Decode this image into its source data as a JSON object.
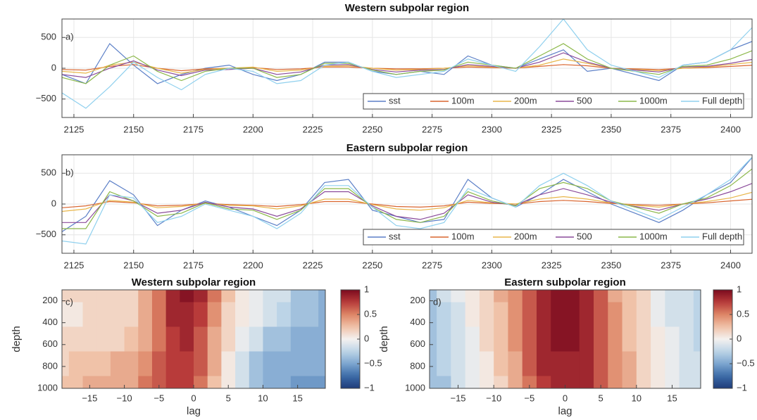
{
  "chart_data": [
    {
      "type": "line",
      "title": "Western subpolar region",
      "panel_label": "a)",
      "x": [
        2120,
        2130,
        2140,
        2150,
        2160,
        2170,
        2180,
        2190,
        2200,
        2210,
        2220,
        2230,
        2240,
        2250,
        2260,
        2270,
        2280,
        2290,
        2300,
        2310,
        2320,
        2330,
        2340,
        2350,
        2360,
        2370,
        2380,
        2390,
        2400,
        2410
      ],
      "xlim": [
        2120,
        2409
      ],
      "xticks": [
        2125,
        2150,
        2175,
        2200,
        2225,
        2250,
        2275,
        2300,
        2325,
        2350,
        2375,
        2400
      ],
      "ylim": [
        -800,
        800
      ],
      "yticks": [
        {
          "value": -500,
          "label": "−500"
        },
        0,
        500
      ],
      "grid": true,
      "legend": "lower right",
      "series": [
        {
          "name": "sst",
          "color": "#5b7fc7",
          "values": [
            -100,
            -250,
            400,
            50,
            -250,
            -100,
            0,
            50,
            -100,
            -200,
            -100,
            100,
            100,
            -50,
            -100,
            -50,
            -100,
            200,
            50,
            0,
            150,
            300,
            -50,
            0,
            -100,
            -200,
            50,
            100,
            300,
            450
          ]
        },
        {
          "name": "100m",
          "color": "#d9652f",
          "values": [
            -20,
            -30,
            30,
            60,
            0,
            -40,
            -10,
            0,
            10,
            -20,
            -10,
            20,
            20,
            0,
            -10,
            -10,
            0,
            20,
            10,
            0,
            30,
            60,
            40,
            0,
            -10,
            -20,
            0,
            10,
            30,
            50
          ]
        },
        {
          "name": "200m",
          "color": "#e8b64a",
          "values": [
            -50,
            -80,
            50,
            100,
            0,
            -80,
            -20,
            0,
            20,
            -50,
            -30,
            30,
            40,
            0,
            -30,
            -20,
            0,
            40,
            20,
            0,
            50,
            150,
            80,
            0,
            -20,
            -40,
            0,
            20,
            60,
            100
          ]
        },
        {
          "name": "500",
          "color": "#8a4a9a",
          "values": [
            -100,
            -150,
            0,
            120,
            -30,
            -120,
            -30,
            -20,
            0,
            -100,
            -60,
            50,
            60,
            -20,
            -60,
            -30,
            -20,
            60,
            30,
            0,
            100,
            250,
            100,
            0,
            -30,
            -60,
            20,
            30,
            80,
            150
          ]
        },
        {
          "name": "1000m",
          "color": "#8cb84a",
          "values": [
            -150,
            -250,
            50,
            200,
            -50,
            -200,
            -50,
            0,
            0,
            -150,
            -100,
            80,
            80,
            -30,
            -100,
            -50,
            -30,
            100,
            50,
            0,
            200,
            400,
            150,
            0,
            -50,
            -100,
            30,
            50,
            150,
            300
          ]
        },
        {
          "name": "Full depth",
          "color": "#8fd0ee",
          "values": [
            -400,
            -650,
            -300,
            100,
            -150,
            -350,
            -100,
            0,
            -50,
            -250,
            -200,
            50,
            100,
            -50,
            -150,
            -100,
            -50,
            150,
            50,
            -50,
            350,
            800,
            300,
            50,
            -50,
            -150,
            50,
            100,
            300,
            700
          ]
        }
      ]
    },
    {
      "type": "line",
      "title": "Eastern subpolar region",
      "panel_label": "b)",
      "x": [
        2120,
        2130,
        2140,
        2150,
        2160,
        2170,
        2180,
        2190,
        2200,
        2210,
        2220,
        2230,
        2240,
        2250,
        2260,
        2270,
        2280,
        2290,
        2300,
        2310,
        2320,
        2330,
        2340,
        2350,
        2360,
        2370,
        2380,
        2390,
        2400,
        2410
      ],
      "xlim": [
        2120,
        2409
      ],
      "xticks": [
        2125,
        2150,
        2175,
        2200,
        2225,
        2250,
        2275,
        2300,
        2325,
        2350,
        2375,
        2400
      ],
      "ylim": [
        -800,
        800
      ],
      "yticks": [
        {
          "value": -500,
          "label": "−500"
        },
        0,
        500
      ],
      "grid": true,
      "legend": "lower right",
      "series": [
        {
          "name": "sst",
          "color": "#5b7fc7",
          "values": [
            -450,
            -200,
            380,
            150,
            -350,
            -100,
            50,
            -50,
            -200,
            -350,
            -100,
            350,
            400,
            -100,
            -200,
            -300,
            -250,
            400,
            100,
            -50,
            150,
            400,
            200,
            0,
            -150,
            -300,
            -100,
            150,
            350,
            800
          ]
        },
        {
          "name": "100m",
          "color": "#d9652f",
          "values": [
            -60,
            -30,
            40,
            20,
            -30,
            -20,
            10,
            -10,
            -20,
            -40,
            -10,
            40,
            40,
            0,
            -40,
            -50,
            -30,
            30,
            10,
            0,
            40,
            60,
            40,
            10,
            -10,
            -20,
            0,
            20,
            50,
            80
          ]
        },
        {
          "name": "200m",
          "color": "#e8b64a",
          "values": [
            -120,
            -80,
            60,
            30,
            -60,
            -40,
            10,
            -20,
            -30,
            -80,
            -30,
            80,
            80,
            -10,
            -80,
            -100,
            -60,
            60,
            20,
            0,
            80,
            120,
            80,
            20,
            -20,
            -50,
            0,
            40,
            100,
            200
          ]
        },
        {
          "name": "500",
          "color": "#8a4a9a",
          "values": [
            -300,
            -300,
            150,
            50,
            -150,
            -100,
            30,
            -50,
            -80,
            -200,
            -80,
            200,
            200,
            -30,
            -200,
            -250,
            -150,
            150,
            30,
            -20,
            150,
            250,
            150,
            30,
            -40,
            -100,
            0,
            80,
            200,
            350
          ]
        },
        {
          "name": "1000m",
          "color": "#8cb84a",
          "values": [
            -400,
            -400,
            200,
            50,
            -200,
            -150,
            20,
            -80,
            -100,
            -250,
            -100,
            250,
            250,
            -50,
            -250,
            -300,
            -200,
            200,
            50,
            -30,
            250,
            350,
            250,
            50,
            -50,
            -150,
            0,
            100,
            300,
            600
          ]
        },
        {
          "name": "Full depth",
          "color": "#8fd0ee",
          "values": [
            -600,
            -650,
            150,
            100,
            -300,
            -200,
            0,
            -100,
            -200,
            -400,
            -150,
            300,
            300,
            -50,
            -350,
            -400,
            -300,
            250,
            100,
            -50,
            300,
            500,
            300,
            50,
            -100,
            -250,
            -50,
            150,
            400,
            800
          ]
        }
      ]
    },
    {
      "type": "contour",
      "title": "Western subpolar region",
      "panel_label": "c)",
      "xlabel": "lag",
      "ylabel": "depth",
      "x": [
        -19,
        -17,
        -15,
        -13,
        -11,
        -9,
        -7,
        -5,
        -3,
        -1,
        1,
        3,
        5,
        7,
        9,
        11,
        13,
        15,
        17,
        19
      ],
      "y": [
        100,
        325,
        550,
        775,
        1000
      ],
      "z": [
        [
          0.1,
          0.1,
          0.1,
          0.1,
          0.12,
          0.15,
          0.3,
          0.55,
          0.85,
          0.95,
          0.8,
          0.5,
          0.25,
          0.05,
          -0.05,
          -0.15,
          -0.2,
          -0.3,
          -0.35,
          -0.4
        ],
        [
          0.08,
          0.08,
          0.1,
          0.12,
          0.12,
          0.15,
          0.3,
          0.55,
          0.8,
          0.9,
          0.75,
          0.45,
          0.2,
          0,
          -0.1,
          -0.2,
          -0.25,
          -0.3,
          -0.35,
          -0.4
        ],
        [
          0.15,
          0.18,
          0.2,
          0.2,
          0.2,
          0.25,
          0.35,
          0.55,
          0.75,
          0.8,
          0.65,
          0.35,
          0.1,
          -0.1,
          -0.2,
          -0.3,
          -0.35,
          -0.4,
          -0.45,
          -0.45
        ],
        [
          0.2,
          0.22,
          0.25,
          0.25,
          0.3,
          0.35,
          0.45,
          0.6,
          0.75,
          0.75,
          0.6,
          0.3,
          0.05,
          -0.15,
          -0.3,
          -0.4,
          -0.45,
          -0.5,
          -0.5,
          -0.5
        ],
        [
          0.25,
          0.25,
          0.3,
          0.3,
          0.35,
          0.4,
          0.5,
          0.6,
          0.72,
          0.72,
          0.55,
          0.25,
          0,
          -0.2,
          -0.35,
          -0.45,
          -0.5,
          -0.55,
          -0.55,
          -0.55
        ]
      ],
      "xlim": [
        -19,
        19
      ],
      "xticks": [
        {
          "value": -15,
          "label": "−15"
        },
        {
          "value": -10,
          "label": "−10"
        },
        {
          "value": -5,
          "label": "−5"
        },
        0,
        5,
        10,
        15
      ],
      "ylim": [
        100,
        1000
      ],
      "y_direction": "reverse",
      "yticks": [
        200,
        400,
        600,
        800,
        1000
      ],
      "clim": [
        -1,
        1
      ],
      "cticks": [
        {
          "value": -1,
          "label": "−1"
        },
        {
          "value": -0.5,
          "label": "−0.5"
        },
        0,
        0.5,
        1
      ]
    },
    {
      "type": "contour",
      "title": "Eastern subpolar region",
      "panel_label": "d)",
      "xlabel": "lag",
      "ylabel": "depth",
      "x": [
        -19,
        -17,
        -15,
        -13,
        -11,
        -9,
        -7,
        -5,
        -3,
        -1,
        1,
        3,
        5,
        7,
        9,
        11,
        13,
        15,
        17,
        19
      ],
      "y": [
        100,
        325,
        550,
        775,
        1000
      ],
      "z": [
        [
          -0.3,
          -0.2,
          -0.1,
          0,
          0.15,
          0.3,
          0.45,
          0.65,
          0.85,
          0.97,
          0.95,
          0.85,
          0.6,
          0.4,
          0.25,
          0.1,
          -0.05,
          -0.15,
          -0.2,
          -0.25
        ],
        [
          -0.3,
          -0.22,
          -0.12,
          0,
          0.12,
          0.28,
          0.45,
          0.65,
          0.85,
          0.95,
          0.95,
          0.82,
          0.6,
          0.42,
          0.25,
          0.1,
          -0.05,
          -0.12,
          -0.2,
          -0.25
        ],
        [
          -0.32,
          -0.25,
          -0.15,
          -0.02,
          0.1,
          0.25,
          0.42,
          0.62,
          0.82,
          0.92,
          0.92,
          0.82,
          0.62,
          0.42,
          0.28,
          0.12,
          0,
          -0.1,
          -0.18,
          -0.22
        ],
        [
          -0.35,
          -0.28,
          -0.18,
          -0.05,
          0.08,
          0.22,
          0.4,
          0.6,
          0.8,
          0.9,
          0.9,
          0.8,
          0.62,
          0.45,
          0.3,
          0.15,
          0.02,
          -0.08,
          -0.15,
          -0.2
        ],
        [
          -0.38,
          -0.3,
          -0.2,
          -0.08,
          0.05,
          0.2,
          0.38,
          0.58,
          0.78,
          0.88,
          0.88,
          0.8,
          0.62,
          0.45,
          0.3,
          0.18,
          0.05,
          -0.05,
          -0.12,
          -0.18
        ]
      ],
      "xlim": [
        -19,
        19
      ],
      "xticks": [
        {
          "value": -15,
          "label": "−15"
        },
        {
          "value": -10,
          "label": "−10"
        },
        {
          "value": -5,
          "label": "−5"
        },
        0,
        5,
        10,
        15
      ],
      "ylim": [
        100,
        1000
      ],
      "y_direction": "reverse",
      "yticks": [
        200,
        400,
        600,
        800,
        1000
      ],
      "clim": [
        -1,
        1
      ],
      "cticks": [
        {
          "value": -1,
          "label": "−1"
        },
        {
          "value": -0.5,
          "label": "−0.5"
        },
        0,
        0.5,
        1
      ]
    }
  ]
}
